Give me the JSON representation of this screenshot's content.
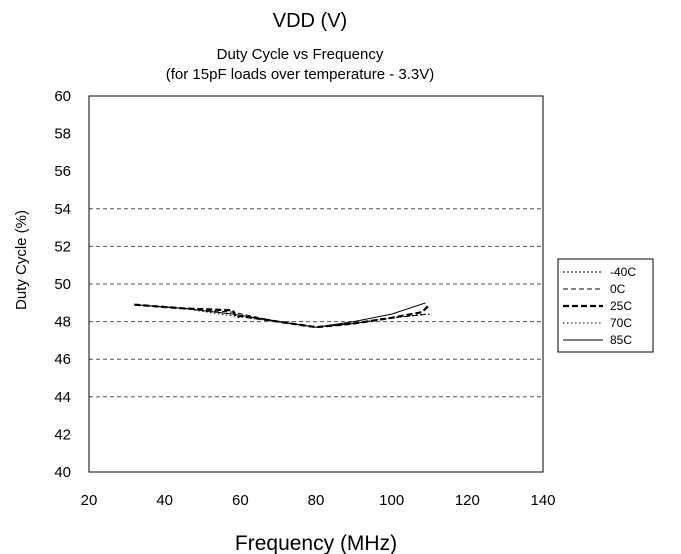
{
  "chart_data": {
    "type": "line",
    "top_label": "VDD (V)",
    "title": "Duty Cycle vs Frequency",
    "subtitle": "(for 15pF loads over temperature - 3.3V)",
    "xlabel": "Frequency (MHz)",
    "ylabel": "Duty Cycle (%)",
    "xlim": [
      20,
      140
    ],
    "ylim": [
      40,
      60
    ],
    "x_ticks": [
      "20",
      "40",
      "60",
      "80",
      "100",
      "120",
      "140"
    ],
    "y_ticks": [
      "40",
      "42",
      "44",
      "46",
      "48",
      "50",
      "52",
      "54",
      "56",
      "58",
      "60"
    ],
    "gridlines_y": [
      44,
      46,
      48,
      50,
      52,
      54
    ],
    "legend_position": "right",
    "series": [
      {
        "name": "-40C",
        "style": "dotted",
        "x": [
          32,
          45,
          58,
          70,
          80,
          90,
          100,
          109
        ],
        "y": [
          48.9,
          48.7,
          48.4,
          48.0,
          47.7,
          47.9,
          48.2,
          48.4
        ]
      },
      {
        "name": "0C",
        "style": "dashed",
        "x": [
          32,
          45,
          58,
          70,
          80,
          90,
          100,
          110
        ],
        "y": [
          48.9,
          48.7,
          48.5,
          48.0,
          47.7,
          47.9,
          48.2,
          48.4
        ]
      },
      {
        "name": "25C",
        "style": "bold-dashed",
        "x": [
          32,
          45,
          58,
          59,
          60,
          70,
          80,
          90,
          100,
          108,
          110
        ],
        "y": [
          48.9,
          48.7,
          48.6,
          48.2,
          48.3,
          48.0,
          47.7,
          47.9,
          48.2,
          48.5,
          48.9
        ]
      },
      {
        "name": "70C",
        "style": "fine-dotted",
        "x": [
          32,
          45,
          58,
          70,
          80,
          90,
          100,
          110
        ],
        "y": [
          48.9,
          48.7,
          48.3,
          48.0,
          47.7,
          47.9,
          48.2,
          48.4
        ]
      },
      {
        "name": "85C",
        "style": "solid",
        "x": [
          32,
          45,
          58,
          70,
          80,
          90,
          100,
          109
        ],
        "y": [
          48.9,
          48.7,
          48.4,
          48.0,
          47.7,
          48.0,
          48.4,
          49.0
        ]
      }
    ]
  }
}
